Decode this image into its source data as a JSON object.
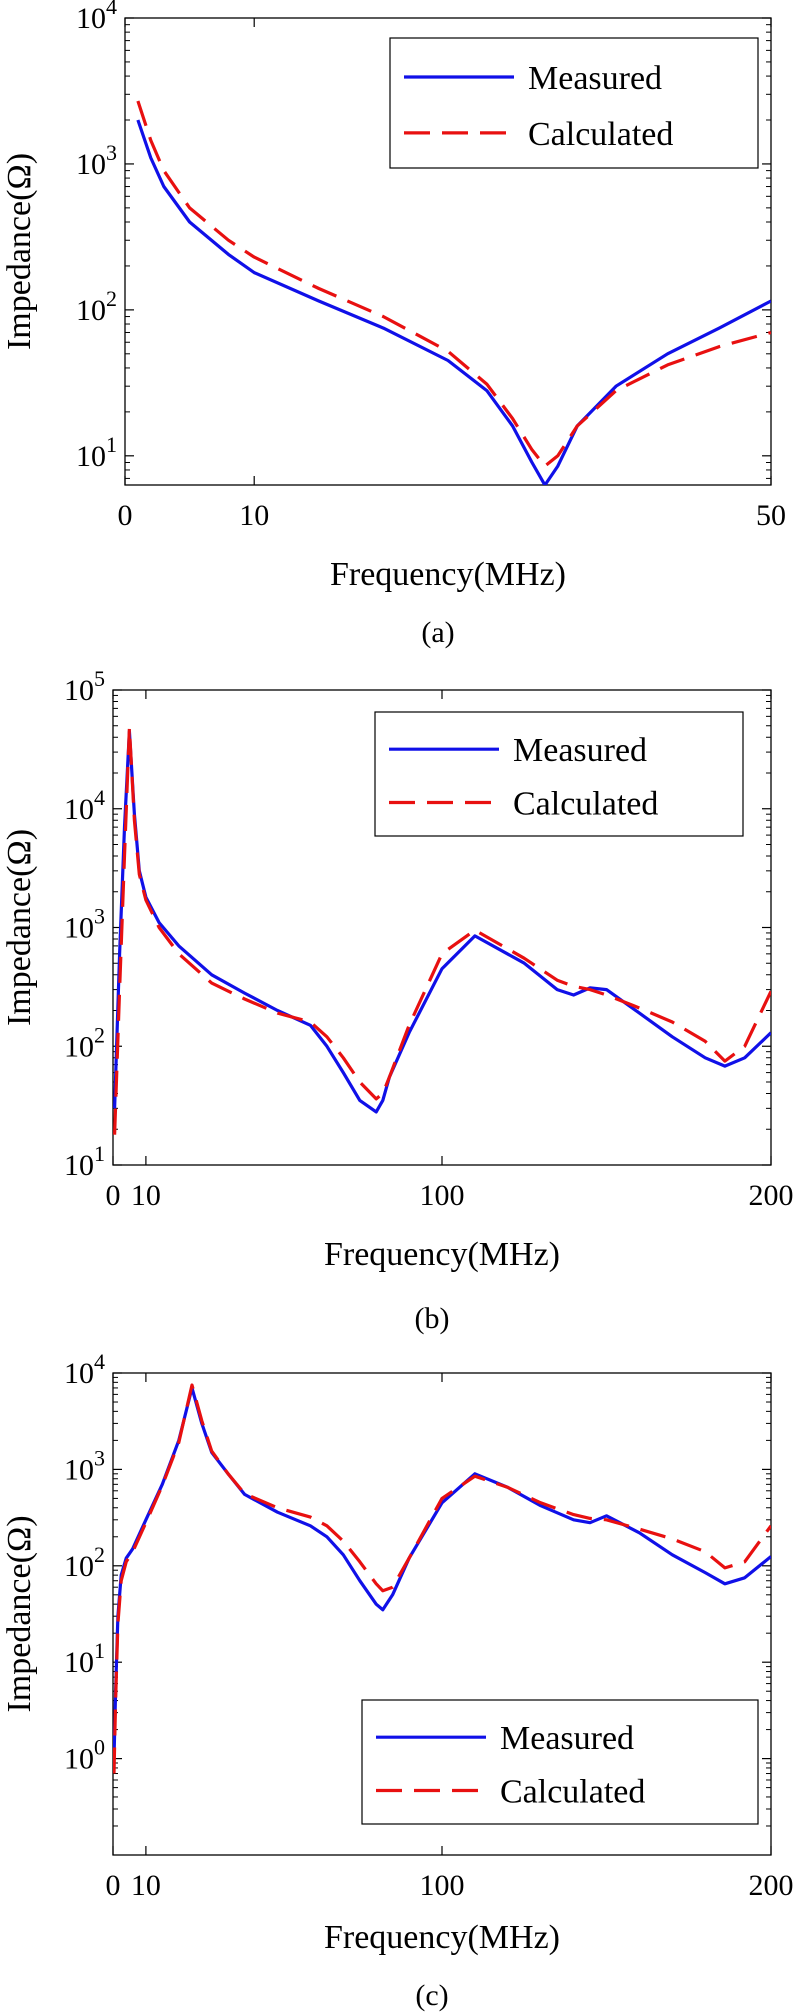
{
  "chart_data": [
    {
      "type": "line",
      "caption": "(a)",
      "xlabel": "Frequency(MHz)",
      "ylabel": "Impedance(Ω)",
      "xlim": [
        0,
        50
      ],
      "ylim_log10": [
        0.8,
        4
      ],
      "x_tick_values": [
        0,
        10,
        50
      ],
      "x_tick_labels": [
        "0",
        "10",
        "50"
      ],
      "y_tick_exponents": [
        1,
        2,
        3,
        4
      ],
      "legend": [
        "Measured",
        "Calculated"
      ],
      "legend_position": "top-right",
      "series": [
        {
          "name": "Measured",
          "color": "#1010e8",
          "style": "solid",
          "x": [
            1,
            2,
            3,
            5,
            8,
            10,
            15,
            20,
            25,
            28,
            30,
            31.5,
            32.5,
            33.5,
            35,
            38,
            42,
            46,
            50
          ],
          "y": [
            2000,
            1100,
            700,
            400,
            240,
            180,
            115,
            75,
            45,
            28,
            16,
            9,
            6.3,
            8.5,
            16,
            30,
            50,
            75,
            115
          ]
        },
        {
          "name": "Calculated",
          "color": "#e81010",
          "style": "dashed",
          "x": [
            1,
            2,
            3,
            5,
            8,
            10,
            15,
            20,
            25,
            28,
            30,
            31.5,
            32.5,
            33.5,
            35,
            38,
            42,
            46,
            50
          ],
          "y": [
            2700,
            1450,
            900,
            500,
            300,
            230,
            140,
            90,
            52,
            31,
            18,
            11,
            8.5,
            10,
            16,
            28,
            42,
            56,
            70
          ]
        }
      ]
    },
    {
      "type": "line",
      "caption": "(b)",
      "xlabel": "Frequency(MHz)",
      "ylabel": "Impedance(Ω)",
      "xlim": [
        0,
        200
      ],
      "ylim_log10": [
        1,
        5
      ],
      "x_tick_values": [
        0,
        10,
        100,
        200
      ],
      "x_tick_labels": [
        "0",
        "10",
        "100",
        "200"
      ],
      "y_tick_exponents": [
        1,
        2,
        3,
        4,
        5
      ],
      "legend": [
        "Measured",
        "Calculated"
      ],
      "legend_position": "top-right",
      "series": [
        {
          "name": "Measured",
          "color": "#1010e8",
          "style": "solid",
          "x": [
            0.5,
            2,
            3.5,
            5,
            6.5,
            8,
            10,
            14,
            20,
            30,
            40,
            50,
            60,
            65,
            70,
            75,
            80,
            82,
            84,
            90,
            100,
            110,
            125,
            135,
            140,
            145,
            150,
            160,
            170,
            180,
            186,
            192,
            200
          ],
          "y": [
            30,
            600,
            7000,
            45000,
            9000,
            3000,
            1800,
            1100,
            700,
            400,
            280,
            200,
            150,
            100,
            60,
            35,
            28,
            35,
            55,
            130,
            450,
            850,
            500,
            300,
            270,
            310,
            300,
            190,
            120,
            80,
            68,
            80,
            130
          ]
        },
        {
          "name": "Calculated",
          "color": "#e81010",
          "style": "dashed",
          "x": [
            0.5,
            2,
            3.5,
            5,
            6.5,
            8,
            10,
            14,
            20,
            30,
            40,
            50,
            60,
            65,
            70,
            75,
            80,
            82,
            84,
            90,
            100,
            110,
            125,
            135,
            140,
            145,
            150,
            160,
            170,
            180,
            186,
            192,
            200
          ],
          "y": [
            18,
            300,
            4000,
            48000,
            8000,
            2800,
            1700,
            1000,
            600,
            340,
            250,
            190,
            160,
            120,
            80,
            50,
            36,
            40,
            55,
            150,
            600,
            950,
            550,
            360,
            320,
            300,
            270,
            210,
            160,
            110,
            75,
            100,
            290
          ]
        }
      ]
    },
    {
      "type": "line",
      "caption": "(c)",
      "xlabel": "Frequency(MHz)",
      "ylabel": "Impedance(Ω)",
      "xlim": [
        0,
        200
      ],
      "ylim_log10": [
        -1,
        4
      ],
      "x_tick_values": [
        0,
        10,
        100,
        200
      ],
      "x_tick_labels": [
        "0",
        "10",
        "100",
        "200"
      ],
      "y_tick_exponents": [
        0,
        1,
        2,
        3,
        4
      ],
      "legend": [
        "Measured",
        "Calculated"
      ],
      "legend_position": "bottom-right",
      "series": [
        {
          "name": "Measured",
          "color": "#1010e8",
          "style": "solid",
          "x": [
            0.3,
            0.8,
            1.5,
            2.5,
            4,
            6,
            10,
            15,
            20,
            24,
            27,
            30,
            35,
            40,
            50,
            60,
            65,
            70,
            75,
            80,
            82,
            85,
            90,
            100,
            110,
            120,
            130,
            140,
            145,
            150,
            160,
            170,
            180,
            186,
            192,
            200
          ],
          "y": [
            1,
            5,
            30,
            80,
            120,
            150,
            300,
            700,
            2000,
            7000,
            3000,
            1500,
            900,
            550,
            360,
            260,
            200,
            130,
            70,
            40,
            35,
            50,
            120,
            450,
            900,
            650,
            420,
            300,
            280,
            330,
            220,
            130,
            85,
            65,
            75,
            125
          ]
        },
        {
          "name": "Calculated",
          "color": "#e81010",
          "style": "dashed",
          "x": [
            0.3,
            0.8,
            1.5,
            2.5,
            4,
            6,
            10,
            15,
            20,
            24,
            27,
            30,
            35,
            40,
            50,
            60,
            65,
            70,
            75,
            80,
            82,
            85,
            90,
            100,
            110,
            120,
            130,
            140,
            145,
            150,
            160,
            170,
            180,
            186,
            192,
            200
          ],
          "y": [
            0.7,
            4,
            25,
            70,
            110,
            140,
            280,
            680,
            1900,
            7500,
            3200,
            1550,
            900,
            560,
            400,
            320,
            260,
            180,
            110,
            65,
            55,
            60,
            120,
            500,
            850,
            650,
            450,
            340,
            310,
            300,
            240,
            190,
            140,
            95,
            110,
            260
          ]
        }
      ]
    }
  ]
}
